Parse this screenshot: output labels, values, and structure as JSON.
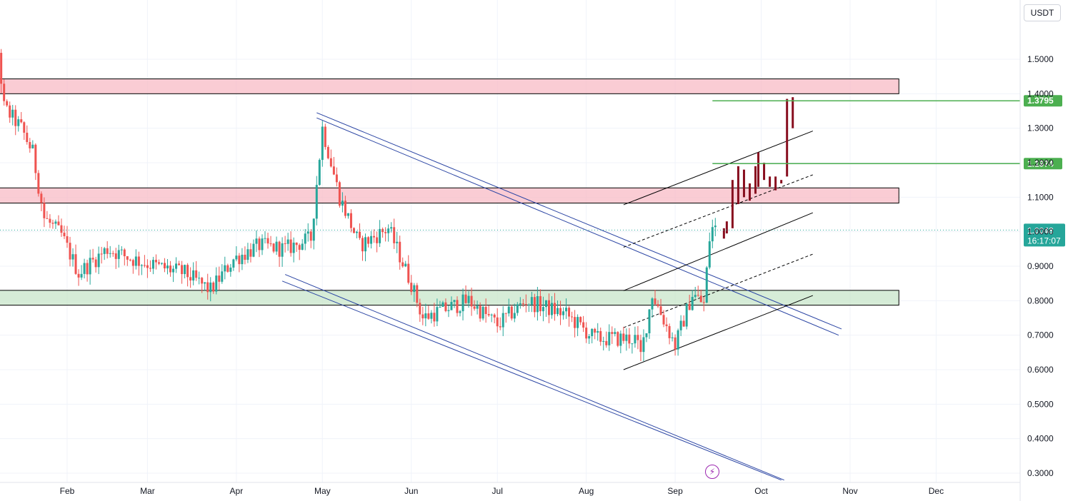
{
  "header": {
    "currency": "USDT"
  },
  "chart_data": {
    "type": "candlestick",
    "y_range": [
      0.28,
      1.68
    ],
    "y_ticks": [
      "1.5000",
      "1.4000",
      "1.3000",
      "1.2000",
      "1.1000",
      "1.0000",
      "0.9000",
      "0.8000",
      "0.7000",
      "0.6000",
      "0.5000",
      "0.4000",
      "0.3000"
    ],
    "x_labels": [
      "Feb",
      "Mar",
      "Apr",
      "May",
      "Jun",
      "Jul",
      "Aug",
      "Sep",
      "Oct",
      "Nov",
      "Dec"
    ],
    "x_range": [
      "2023-01-01",
      "2024-01-01"
    ],
    "current_price": "1.0048",
    "countdown": "16:17:07",
    "level_labels": [
      "1.3795",
      "1.1974"
    ],
    "zones": [
      {
        "kind": "resistance",
        "from": "2023-01-01",
        "to": "2023-11-18",
        "low": 1.4,
        "high": 1.443
      },
      {
        "kind": "resistance",
        "from": "2023-01-01",
        "to": "2023-11-18",
        "low": 1.083,
        "high": 1.127
      },
      {
        "kind": "support",
        "from": "2023-01-04",
        "to": "2023-11-18",
        "low": 0.787,
        "high": 0.83
      }
    ],
    "levels": [
      {
        "value": 1.3795,
        "from": "2023-09-14"
      },
      {
        "value": 1.1974,
        "from": "2023-09-14"
      }
    ],
    "colors": {
      "up": "#26a69a",
      "down": "#ef5350",
      "projection": "#880e1f",
      "zone_red": "#f8bbc6",
      "zone_green": "#c8e6c9",
      "channel_blue": "#2a44a3",
      "level_green": "#4caf50",
      "price_line": "#26a69a"
    },
    "icons": {
      "alert": "lightning-icon"
    },
    "candles": []
  }
}
